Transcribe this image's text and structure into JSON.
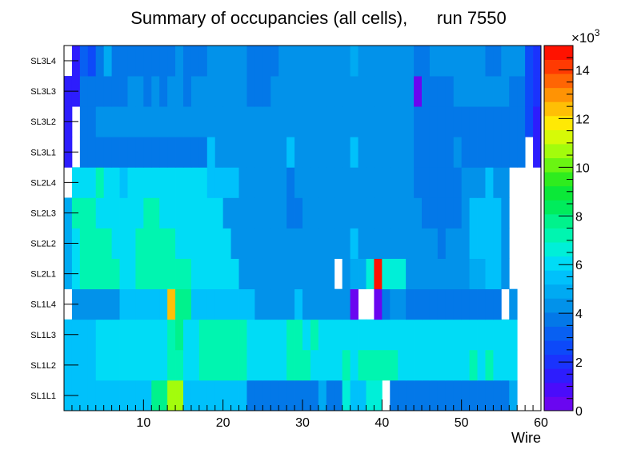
{
  "chart_data": {
    "type": "heatmap",
    "title": "Summary of occupancies (all cells),      run 7550",
    "xlabel": "Wire",
    "ylabel": "",
    "xlim": [
      0,
      60
    ],
    "x_ticks": [
      10,
      20,
      30,
      40,
      50,
      60
    ],
    "rows": [
      "SL1L1",
      "SL1L2",
      "SL1L3",
      "SL1L4",
      "SL2L1",
      "SL2L2",
      "SL2L3",
      "SL2L4",
      "SL3L1",
      "SL3L2",
      "SL3L3",
      "SL3L4"
    ],
    "zlim": [
      0,
      15
    ],
    "z_ticks": [
      0,
      2,
      4,
      6,
      8,
      10,
      12,
      14
    ],
    "z_multiplier": "×10",
    "z_exponent": "3",
    "palette": [
      "#6a06f0",
      "#4a0cfb",
      "#2d1dfd",
      "#1a33fd",
      "#0d49f9",
      "#0860f2",
      "#0378e8",
      "#0292ea",
      "#00aaf2",
      "#00c1fb",
      "#00dcf6",
      "#00efd8",
      "#00f5b0",
      "#00f28c",
      "#00ec5c",
      "#0be838",
      "#2fec1e",
      "#6af512",
      "#a3fc0c",
      "#d6fa07",
      "#ffe905",
      "#ffbf05",
      "#ff9304",
      "#ff6504",
      "#ff3a02",
      "#ff1200"
    ],
    "values_unit": "thousands",
    "values": [
      [
        5.5,
        5.5,
        5.5,
        5.5,
        5.5,
        5.5,
        5.5,
        5.5,
        5.5,
        5.5,
        5.5,
        8.0,
        8.0,
        10.5,
        10.5,
        5.5,
        5.5,
        5.5,
        5.5,
        5.5,
        5.5,
        5.5,
        5.5,
        4.0,
        4.0,
        4.0,
        4.0,
        4.0,
        4.0,
        4.0,
        4.0,
        4.0,
        5.0,
        4.0,
        4.0,
        6.5,
        5.5,
        5.5,
        6.5,
        6.5,
        null,
        4.0,
        4.0,
        4.0,
        4.0,
        4.0,
        3.5,
        3.5,
        3.5,
        3.5,
        3.5,
        4.0,
        4.0,
        4.0,
        4.0,
        4.0,
        5.0,
        null,
        null,
        null
      ],
      [
        5.5,
        5.5,
        5.5,
        5.5,
        6.0,
        6.0,
        6.0,
        6.0,
        6.0,
        6.0,
        6.0,
        6.0,
        6.0,
        7.0,
        7.0,
        6.0,
        6.0,
        7.0,
        7.0,
        7.0,
        7.0,
        7.0,
        7.0,
        6.0,
        6.0,
        6.0,
        6.0,
        6.0,
        7.0,
        7.0,
        7.0,
        6.0,
        6.0,
        6.0,
        6.0,
        7.0,
        6.0,
        7.0,
        7.0,
        7.0,
        7.0,
        7.0,
        6.0,
        6.0,
        6.0,
        6.0,
        6.0,
        6.0,
        6.0,
        6.0,
        6.0,
        7.0,
        6.0,
        7.0,
        6.0,
        6.0,
        6.0,
        null,
        null,
        null
      ],
      [
        5.5,
        5.5,
        5.5,
        5.5,
        6.0,
        6.0,
        6.0,
        6.0,
        6.0,
        6.0,
        6.0,
        6.0,
        6.0,
        7.0,
        8.0,
        6.0,
        6.0,
        7.0,
        7.0,
        7.0,
        7.0,
        7.0,
        7.0,
        6.0,
        6.0,
        6.0,
        6.0,
        6.0,
        7.0,
        7.0,
        6.0,
        7.0,
        6.0,
        6.0,
        6.0,
        6.0,
        6.0,
        6.0,
        6.0,
        6.0,
        6.0,
        6.0,
        6.0,
        6.0,
        6.0,
        6.0,
        6.0,
        6.0,
        6.0,
        6.0,
        6.0,
        6.0,
        6.0,
        6.0,
        6.0,
        6.0,
        6.0,
        null,
        null,
        null
      ],
      [
        null,
        4.5,
        4.5,
        4.5,
        4.5,
        4.5,
        4.5,
        5.5,
        5.5,
        5.5,
        5.5,
        5.5,
        5.5,
        12.5,
        7.5,
        7.5,
        5.5,
        5.5,
        5.5,
        5.5,
        5.5,
        5.5,
        5.5,
        5.5,
        4.5,
        4.5,
        4.5,
        4.5,
        4.5,
        5.5,
        4.5,
        4.5,
        4.5,
        4.5,
        4.5,
        4.5,
        0.5,
        null,
        null,
        0.5,
        3.5,
        4.5,
        4.5,
        3.5,
        3.5,
        3.5,
        3.5,
        3.5,
        3.5,
        3.5,
        3.5,
        3.5,
        3.5,
        3.5,
        3.5,
        null,
        4.5,
        null,
        null,
        null
      ],
      [
        5.0,
        6.0,
        7.0,
        7.0,
        7.0,
        7.0,
        7.0,
        6.0,
        6.0,
        7.0,
        7.0,
        7.0,
        7.0,
        7.0,
        7.0,
        7.0,
        6.0,
        6.0,
        6.0,
        6.0,
        6.0,
        6.0,
        4.5,
        4.5,
        4.5,
        4.5,
        4.5,
        4.5,
        4.5,
        4.5,
        4.5,
        4.5,
        4.5,
        4.5,
        null,
        4.5,
        5.0,
        5.0,
        6.5,
        14.8,
        6.5,
        6.5,
        6.5,
        4.5,
        4.5,
        4.5,
        4.5,
        4.5,
        4.5,
        4.5,
        4.5,
        5.0,
        5.0,
        5.5,
        5.5,
        4.5,
        null,
        null,
        null,
        null
      ],
      [
        5.0,
        6.0,
        7.0,
        7.0,
        7.0,
        7.0,
        6.0,
        6.0,
        6.0,
        7.0,
        7.0,
        7.0,
        7.0,
        7.0,
        6.0,
        6.0,
        6.0,
        6.0,
        6.0,
        6.0,
        6.0,
        4.5,
        4.5,
        4.5,
        4.5,
        4.5,
        4.5,
        4.5,
        4.5,
        4.5,
        4.5,
        4.5,
        4.5,
        4.5,
        4.5,
        4.5,
        5.5,
        4.5,
        4.5,
        4.5,
        4.5,
        4.5,
        4.5,
        4.5,
        4.5,
        4.5,
        4.5,
        3.5,
        4.5,
        4.5,
        4.5,
        5.5,
        5.5,
        5.5,
        5.5,
        4.5,
        null,
        null,
        null,
        null
      ],
      [
        5.0,
        7.0,
        7.0,
        7.0,
        6.0,
        6.0,
        6.0,
        6.0,
        6.0,
        6.0,
        7.0,
        7.0,
        6.0,
        6.0,
        6.0,
        6.0,
        6.0,
        6.0,
        6.0,
        6.0,
        4.5,
        4.5,
        4.5,
        4.5,
        4.5,
        4.5,
        4.5,
        4.5,
        3.5,
        3.5,
        4.5,
        4.5,
        4.5,
        4.5,
        4.5,
        4.5,
        4.5,
        4.5,
        4.5,
        4.5,
        4.5,
        4.5,
        4.5,
        4.5,
        4.5,
        3.5,
        3.5,
        3.5,
        3.5,
        3.5,
        4.5,
        5.5,
        5.5,
        5.5,
        5.5,
        4.5,
        null,
        null,
        null,
        null
      ],
      [
        null,
        6.0,
        6.0,
        6.0,
        7.0,
        6.0,
        6.0,
        5.5,
        6.0,
        6.0,
        6.0,
        6.0,
        6.0,
        6.0,
        6.0,
        6.0,
        6.0,
        6.0,
        5.5,
        5.5,
        5.5,
        5.5,
        4.5,
        4.5,
        4.5,
        4.5,
        4.5,
        4.5,
        3.5,
        4.5,
        4.5,
        4.5,
        4.5,
        4.5,
        4.5,
        4.5,
        4.5,
        4.5,
        4.5,
        4.5,
        4.5,
        4.5,
        4.5,
        4.5,
        3.5,
        3.5,
        3.5,
        3.5,
        3.5,
        3.5,
        4.5,
        4.5,
        4.5,
        5.5,
        4.5,
        4.5,
        null,
        null,
        null,
        null
      ],
      [
        1.5,
        null,
        4.0,
        4.0,
        4.0,
        4.0,
        4.0,
        4.0,
        4.0,
        4.0,
        4.0,
        4.0,
        4.0,
        4.0,
        4.0,
        4.0,
        4.0,
        4.0,
        5.5,
        4.5,
        4.5,
        4.5,
        4.5,
        4.5,
        4.5,
        4.5,
        4.5,
        4.5,
        5.5,
        4.5,
        4.5,
        4.5,
        4.5,
        4.5,
        4.5,
        4.5,
        5.5,
        4.5,
        4.5,
        4.5,
        4.5,
        4.5,
        4.5,
        4.5,
        4.0,
        4.0,
        4.0,
        4.0,
        4.0,
        4.5,
        4.0,
        4.0,
        4.0,
        4.0,
        4.0,
        4.0,
        4.0,
        4.0,
        null,
        1.5
      ],
      [
        1.5,
        null,
        3.5,
        3.5,
        4.5,
        4.5,
        4.5,
        4.5,
        4.5,
        4.5,
        4.5,
        4.5,
        4.5,
        4.5,
        4.5,
        4.5,
        4.5,
        4.5,
        4.5,
        4.5,
        4.5,
        4.5,
        4.5,
        4.5,
        4.5,
        4.5,
        4.5,
        4.5,
        4.5,
        4.5,
        4.5,
        4.5,
        4.5,
        4.5,
        4.5,
        4.5,
        4.5,
        4.5,
        4.5,
        4.5,
        4.5,
        4.5,
        4.5,
        4.5,
        3.5,
        4.0,
        4.0,
        4.0,
        4.0,
        4.0,
        4.0,
        4.0,
        4.0,
        4.0,
        4.0,
        4.0,
        4.0,
        4.0,
        2.5,
        1.5
      ],
      [
        1.5,
        1.5,
        4.0,
        4.0,
        4.0,
        4.0,
        4.0,
        4.0,
        4.5,
        4.5,
        4.0,
        4.5,
        4.0,
        4.5,
        4.5,
        4.0,
        4.5,
        4.5,
        4.5,
        4.5,
        4.5,
        4.5,
        4.5,
        4.0,
        4.0,
        4.0,
        4.5,
        4.5,
        4.5,
        4.5,
        4.5,
        4.5,
        4.5,
        4.5,
        4.5,
        4.5,
        4.5,
        4.5,
        4.5,
        4.5,
        4.5,
        4.5,
        4.5,
        4.5,
        0.5,
        4.0,
        4.0,
        4.0,
        4.0,
        4.5,
        4.5,
        4.5,
        4.5,
        4.5,
        4.5,
        4.5,
        4.0,
        4.0,
        2.5,
        2.0
      ],
      [
        null,
        1.5,
        3.0,
        2.5,
        4.0,
        5.0,
        4.0,
        4.0,
        4.0,
        4.0,
        4.0,
        4.0,
        4.0,
        4.0,
        4.5,
        4.0,
        4.0,
        4.0,
        4.5,
        4.5,
        4.5,
        4.5,
        4.5,
        4.0,
        4.0,
        4.0,
        4.0,
        4.5,
        4.5,
        4.5,
        4.5,
        4.5,
        4.5,
        4.5,
        4.5,
        4.5,
        5.0,
        4.5,
        4.5,
        4.5,
        4.5,
        4.5,
        4.5,
        4.5,
        4.0,
        4.0,
        4.5,
        4.5,
        4.5,
        4.5,
        4.5,
        4.5,
        4.5,
        4.0,
        4.0,
        4.5,
        4.5,
        4.5,
        2.5,
        2.0
      ]
    ]
  }
}
